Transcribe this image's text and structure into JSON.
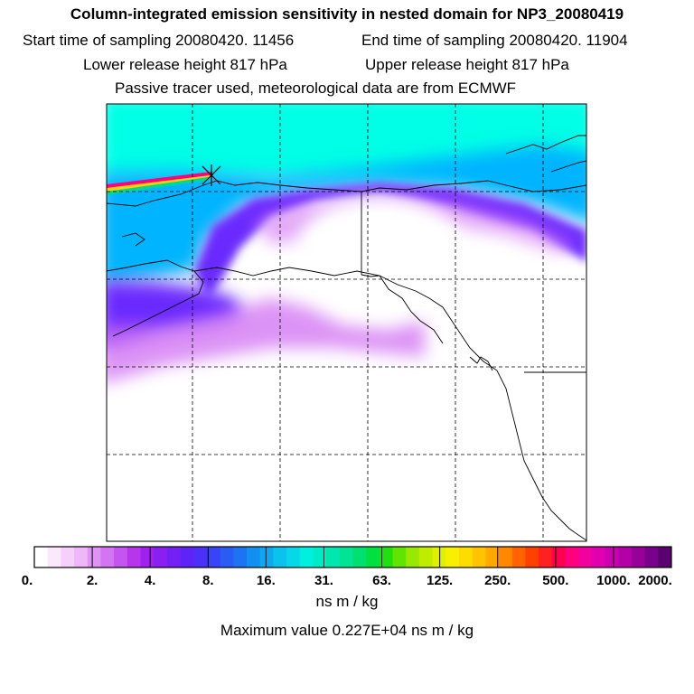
{
  "header": {
    "title": "Column-integrated emission sensitivity in nested domain for NP3_20080419",
    "start_label": "Start time of sampling 20080420. 11456",
    "end_label": "End time of sampling 20080420. 11904",
    "lower_label": "Lower release height  817 hPa",
    "upper_label": "Upper release height  817 hPa",
    "tracer_label": "Passive tracer used, meteorological data are from ECMWF"
  },
  "colorbar": {
    "ticks": [
      "0.",
      "2.",
      "4.",
      "8.",
      "16.",
      "31.",
      "63.",
      "125.",
      "250.",
      "500.",
      "1000.",
      "2000."
    ],
    "unit": "ns m / kg",
    "max_label": "Maximum value  0.227E+04 ns m / kg",
    "segments": [
      "#ffffff",
      "#fbe8fd",
      "#f5d0fb",
      "#eeb8f8",
      "#e093f5",
      "#d374f2",
      "#c455ef",
      "#b636ec",
      "#a020f0",
      "#8a1ff2",
      "#7420f5",
      "#5e24f7",
      "#4a30f8",
      "#3a44f7",
      "#2a5cf5",
      "#1c74f3",
      "#1290f1",
      "#0ea8ef",
      "#0ac2ec",
      "#06d8e8",
      "#00f0e0",
      "#00ecc8",
      "#00e8b0",
      "#00e494",
      "#00e070",
      "#00e040",
      "#20e010",
      "#60e400",
      "#98e800",
      "#c0ec00",
      "#e0f000",
      "#f8f000",
      "#ffdc00",
      "#ffc400",
      "#ffa800",
      "#ff8800",
      "#ff6400",
      "#ff4000",
      "#ff2020",
      "#ff0050",
      "#ff0080",
      "#f200a0",
      "#e000b0",
      "#cc00b0",
      "#b400a8",
      "#98009a",
      "#78008a",
      "#5a0070"
    ]
  },
  "map": {
    "land_color": "#ffffff",
    "high_color": "#00ffe6",
    "mid_color": "#00b4ff",
    "low_color": "#6a2cff",
    "faint_color": "#d070f2",
    "plume_colors": [
      "#ff0080",
      "#ffd000",
      "#00d890"
    ]
  }
}
